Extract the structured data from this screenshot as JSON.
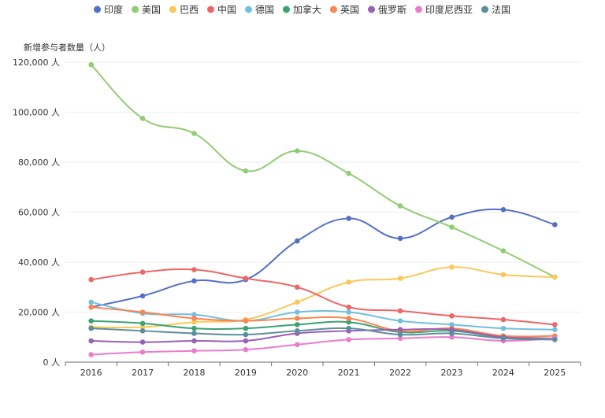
{
  "chart_data": {
    "type": "line",
    "smooth": true,
    "ylabel": "新增参与者数量（人）",
    "y_unit": "人",
    "ylim": [
      0,
      120000
    ],
    "y_ticks": [
      0,
      20000,
      40000,
      60000,
      80000,
      100000,
      120000
    ],
    "grid": "horizontal",
    "legend_position": "top",
    "categories": [
      "2016",
      "2017",
      "2018",
      "2019",
      "2020",
      "2021",
      "2022",
      "2023",
      "2024",
      "2025"
    ],
    "series": [
      {
        "name": "印度",
        "color": "#5470c6",
        "values": [
          22000,
          26500,
          32500,
          33000,
          48500,
          57500,
          49500,
          58000,
          61000,
          55000
        ]
      },
      {
        "name": "美国",
        "color": "#91cc75",
        "values": [
          119000,
          97500,
          91500,
          76500,
          84500,
          75500,
          62500,
          54000,
          44500,
          34000
        ]
      },
      {
        "name": "巴西",
        "color": "#fac858",
        "values": [
          14000,
          14000,
          16000,
          17000,
          24000,
          32000,
          33500,
          38000,
          35000,
          34000
        ]
      },
      {
        "name": "中国",
        "color": "#ee6666",
        "values": [
          33000,
          36000,
          37000,
          33500,
          30000,
          22000,
          20500,
          18500,
          17000,
          15000
        ]
      },
      {
        "name": "德国",
        "color": "#73c0de",
        "values": [
          24000,
          19500,
          19000,
          16500,
          20000,
          20000,
          16500,
          15000,
          13500,
          13000
        ]
      },
      {
        "name": "加拿大",
        "color": "#3ba272",
        "values": [
          16500,
          15500,
          13500,
          13500,
          15000,
          16000,
          12000,
          12500,
          10000,
          9500
        ]
      },
      {
        "name": "英国",
        "color": "#fc8452",
        "values": [
          22000,
          20000,
          17500,
          16500,
          17500,
          17500,
          12500,
          13500,
          10500,
          10500
        ]
      },
      {
        "name": "俄罗斯",
        "color": "#9a60b4",
        "values": [
          8500,
          8000,
          8500,
          8500,
          11500,
          12500,
          13000,
          13000,
          10000,
          9500
        ]
      },
      {
        "name": "印度尼西亚",
        "color": "#ea7ccc",
        "values": [
          3000,
          4000,
          4500,
          5000,
          7000,
          9000,
          9500,
          10000,
          8500,
          9500
        ]
      },
      {
        "name": "法国",
        "color": "#5b8e9e",
        "values": [
          13500,
          12500,
          11500,
          11000,
          12500,
          13500,
          11000,
          11500,
          9500,
          9000
        ]
      }
    ]
  }
}
